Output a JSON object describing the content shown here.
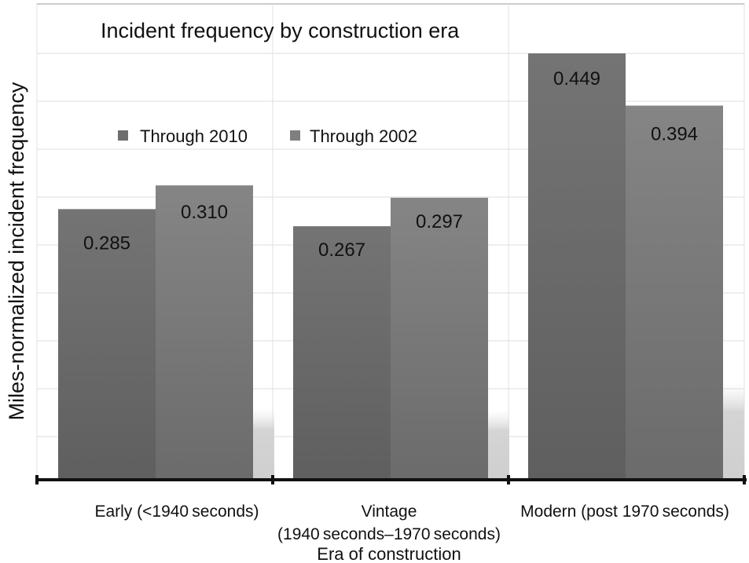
{
  "chart_data": {
    "type": "bar",
    "title": "Incident frequency by construction era",
    "xlabel": "Era of construction",
    "ylabel": "Miles-normalized incident frequency",
    "categories": [
      [
        "Early (<1940 seconds)"
      ],
      [
        "Vintage",
        "(1940 seconds–1970 seconds)"
      ],
      [
        "Modern (post 1970 seconds)"
      ]
    ],
    "series": [
      {
        "name": "Through 2010",
        "values": [
          0.285,
          0.267,
          0.449
        ]
      },
      {
        "name": "Through 2002",
        "values": [
          0.31,
          0.297,
          0.394
        ]
      }
    ],
    "value_labels": [
      [
        "0.285",
        "0.267",
        "0.449"
      ],
      [
        "0.310",
        "0.297",
        "0.394"
      ]
    ],
    "ylim": [
      0,
      0.449
    ],
    "grid": true,
    "legend_position": "upper-left",
    "colors": {
      "series_1": "#6e6e6e",
      "series_2": "#7f7f7f",
      "grid": "#d8d8d8",
      "axis": "#111111"
    }
  }
}
